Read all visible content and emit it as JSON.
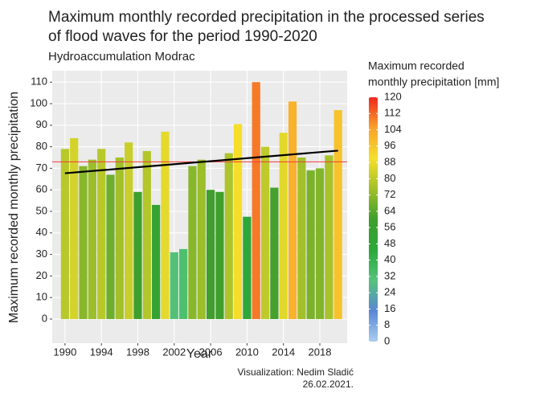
{
  "chart_data": {
    "type": "bar",
    "title": [
      "Maximum monthly recorded precipitation in the processed series",
      "of flood waves for the period 1990-2020"
    ],
    "subtitle": "Hydroaccumulation Modrac",
    "x_label": "Year",
    "y_label": "Maximum recorded monthly precipitation",
    "caption": [
      "Visualization: Nedim Sladić",
      "26.02.2021."
    ],
    "x": [
      1990,
      1991,
      1992,
      1993,
      1994,
      1995,
      1996,
      1997,
      1998,
      1999,
      2000,
      2001,
      2002,
      2003,
      2004,
      2005,
      2006,
      2007,
      2008,
      2009,
      2010,
      2011,
      2012,
      2013,
      2014,
      2015,
      2016,
      2017,
      2018,
      2019,
      2020
    ],
    "values": [
      79,
      84,
      71,
      74,
      79,
      67,
      75,
      82,
      59,
      78,
      53,
      87,
      31,
      32.5,
      71,
      74,
      60,
      59,
      77,
      90.5,
      47.5,
      110,
      80,
      61,
      86.5,
      101,
      75,
      69,
      70,
      76,
      97
    ],
    "xlim": [
      1988.6,
      2021
    ],
    "xticks": [
      1990,
      1994,
      1998,
      2002,
      2006,
      2010,
      2014,
      2018
    ],
    "ylim": [
      -11.2,
      115.3
    ],
    "yticks": [
      0,
      10,
      20,
      30,
      40,
      50,
      60,
      70,
      80,
      90,
      100,
      110
    ],
    "grid": true,
    "trend": {
      "x": [
        1990,
        2020
      ],
      "values": [
        67.7,
        78.2
      ],
      "color": "#000000"
    },
    "reference_line": {
      "value": 73,
      "color": "#f03c3c"
    },
    "colorbar": {
      "title": [
        "Maximum recorded",
        "monthly precipitation [mm]"
      ],
      "lim": [
        0,
        120
      ],
      "ticks": [
        0,
        8,
        16,
        24,
        32,
        40,
        48,
        56,
        64,
        72,
        80,
        88,
        96,
        104,
        112,
        120
      ],
      "colors": [
        "#a9cfee",
        "#5a86d6",
        "#55c37a",
        "#2aa83a",
        "#3f9e2c",
        "#a2c02a",
        "#f5df2c",
        "#f9a12c",
        "#f0281e"
      ]
    }
  }
}
